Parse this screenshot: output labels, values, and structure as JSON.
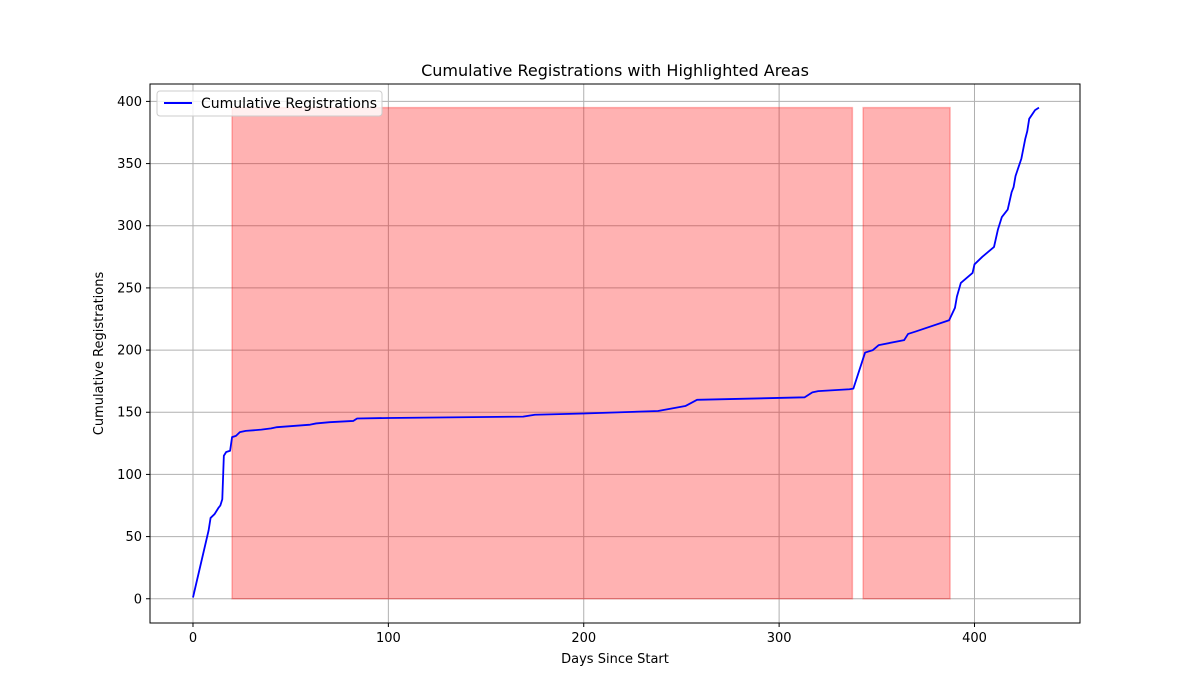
{
  "chart_data": {
    "type": "line",
    "title": "Cumulative Registrations with Highlighted Areas",
    "xlabel": "Days Since Start",
    "ylabel": "Cumulative Registrations",
    "xlim": [
      -22,
      454
    ],
    "ylim": [
      -19.5,
      414
    ],
    "xticks": [
      0,
      100,
      200,
      300,
      400
    ],
    "yticks": [
      0,
      50,
      100,
      150,
      200,
      250,
      300,
      350,
      400
    ],
    "grid": true,
    "legend_position": "upper-left",
    "series": [
      {
        "name": "Cumulative Registrations",
        "color": "#0000ff",
        "points": [
          [
            0,
            1
          ],
          [
            8,
            55
          ],
          [
            9,
            65
          ],
          [
            11,
            68
          ],
          [
            13,
            73
          ],
          [
            14,
            75
          ],
          [
            15,
            80
          ],
          [
            15.5,
            102
          ],
          [
            15.8,
            115
          ],
          [
            17,
            118
          ],
          [
            19,
            119
          ],
          [
            20,
            130
          ],
          [
            22,
            131
          ],
          [
            24,
            134
          ],
          [
            27,
            135
          ],
          [
            35,
            136
          ],
          [
            40,
            137
          ],
          [
            43,
            138
          ],
          [
            60,
            140
          ],
          [
            63,
            141
          ],
          [
            70,
            142
          ],
          [
            82,
            143
          ],
          [
            84,
            145
          ],
          [
            100,
            145.4
          ],
          [
            169,
            146.5
          ],
          [
            175,
            148
          ],
          [
            200,
            149
          ],
          [
            238,
            151
          ],
          [
            245,
            153
          ],
          [
            252,
            155
          ],
          [
            258,
            160
          ],
          [
            313,
            162
          ],
          [
            317,
            166
          ],
          [
            320,
            167
          ],
          [
            336,
            168.5
          ],
          [
            338,
            169
          ],
          [
            344,
            198
          ],
          [
            348,
            200
          ],
          [
            351,
            204
          ],
          [
            364,
            208
          ],
          [
            366,
            213
          ],
          [
            370,
            215
          ],
          [
            387,
            224
          ],
          [
            390,
            234
          ],
          [
            391,
            243
          ],
          [
            393,
            254
          ],
          [
            399,
            262
          ],
          [
            400,
            269
          ],
          [
            404,
            275
          ],
          [
            410,
            283
          ],
          [
            412,
            297
          ],
          [
            414,
            307
          ],
          [
            417,
            313
          ],
          [
            419,
            327
          ],
          [
            420,
            331
          ],
          [
            421,
            340
          ],
          [
            424,
            354
          ],
          [
            426,
            370
          ],
          [
            427,
            376
          ],
          [
            428,
            386
          ],
          [
            431,
            393
          ],
          [
            433,
            395
          ]
        ]
      }
    ],
    "highlighted_areas": [
      {
        "x_start": 20,
        "x_end": 337.5,
        "y_start": 0,
        "y_end": 395,
        "color": "#ff0000",
        "alpha": 0.3
      },
      {
        "x_start": 343,
        "x_end": 387.5,
        "y_start": 0,
        "y_end": 395,
        "color": "#ff0000",
        "alpha": 0.3
      }
    ]
  }
}
